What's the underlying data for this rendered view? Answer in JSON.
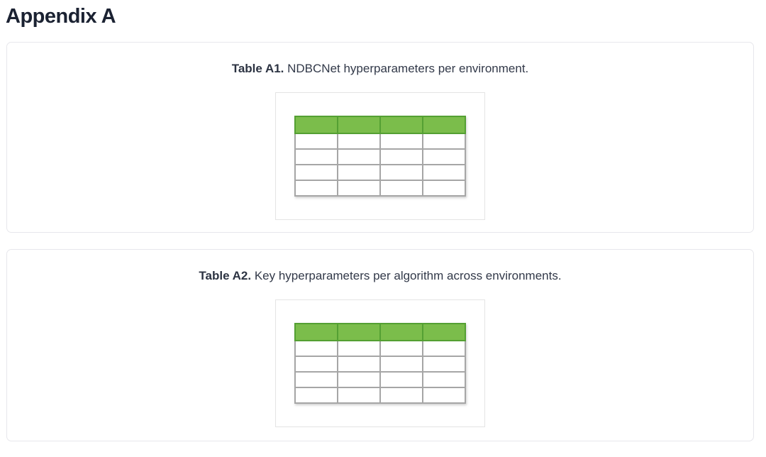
{
  "page": {
    "title": "Appendix A"
  },
  "cards": [
    {
      "caption_label": "Table A1.",
      "caption_text": " NDBCNet hyperparameters per environment.",
      "figure": {
        "kind": "table-placeholder-graphic",
        "columns": 4,
        "body_rows": 4,
        "header_fill": "#7bbd4b",
        "header_border": "#54a033",
        "grid_color": "#a6a6a6"
      }
    },
    {
      "caption_label": "Table A2.",
      "caption_text": " Key hyperparameters per algorithm across environments.",
      "figure": {
        "kind": "table-placeholder-graphic",
        "columns": 4,
        "body_rows": 4,
        "header_fill": "#7bbd4b",
        "header_border": "#54a033",
        "grid_color": "#a6a6a6"
      }
    }
  ],
  "colors": {
    "heading_text": "#1b2232",
    "caption_text": "#323949",
    "card_border": "#e7e7ec",
    "figure_border": "#e4e4e4",
    "background": "#ffffff"
  }
}
